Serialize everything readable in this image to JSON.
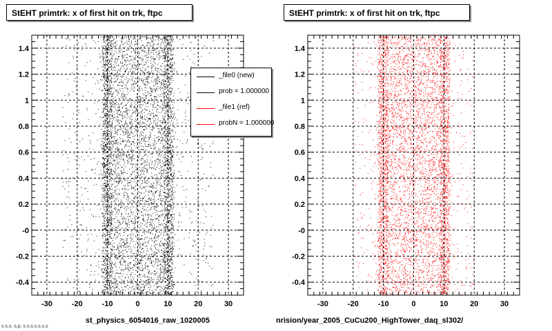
{
  "panels": [
    {
      "title": "StEHT primtrk: x of first hit on trk, ftpc",
      "footer": "st_physics_6054016_raw_1020005",
      "color": "#000000"
    },
    {
      "title": "StEHT primtrk: x of first hit on trk, ftpc",
      "footer": "nrision/year_2005_CuCu200_HighTower_daq_sl302/",
      "color": "#ff0000"
    }
  ],
  "footer_stamp": "s.s.s. s.p. s.s.s.s.s.s.s",
  "legend": {
    "entries": [
      {
        "label": "_file0 (new)",
        "color": "#000000"
      },
      {
        "label": "prob = 1.000000",
        "color": "#000000"
      },
      {
        "label": "_file1 (ref)",
        "color": "#ff0000"
      },
      {
        "label": "probN = 1.000000",
        "color": "#ff0000"
      }
    ]
  },
  "chart_data": [
    {
      "type": "scatter",
      "title": "StEHT primtrk: x of first hit on trk, ftpc",
      "xlabel": "",
      "ylabel": "",
      "xlim": [
        -35,
        35
      ],
      "ylim": [
        -0.5,
        1.5
      ],
      "x_ticks": [
        -30,
        -20,
        -10,
        0,
        10,
        20,
        30
      ],
      "x_tick_labels": [
        "-30",
        "-20",
        "-10",
        "0",
        "10",
        "20",
        "30"
      ],
      "y_ticks": [
        -0.4,
        -0.2,
        0.0,
        0.2,
        0.4,
        0.6,
        0.8,
        1.0,
        1.2,
        1.4
      ],
      "y_tick_labels": [
        "-0.4",
        "-0.2",
        "-0",
        "0.2",
        "0.4",
        "0.6",
        "0.8",
        "1",
        "1.2",
        "1.4"
      ],
      "grid": true,
      "series": [
        {
          "name": "_file0 (new)",
          "color": "#000000",
          "n_points": 6500,
          "x_range": [
            -25,
            25
          ],
          "x_dense_bands": [
            -10,
            10
          ],
          "y_range": [
            -0.5,
            1.5
          ]
        }
      ]
    },
    {
      "type": "scatter",
      "title": "StEHT primtrk: x of first hit on trk, ftpc",
      "xlabel": "",
      "ylabel": "",
      "xlim": [
        -35,
        35
      ],
      "ylim": [
        -0.5,
        1.5
      ],
      "x_ticks": [
        -30,
        -20,
        -10,
        0,
        10,
        20,
        30
      ],
      "x_tick_labels": [
        "-30",
        "-20",
        "-10",
        "0",
        "10",
        "20",
        "30"
      ],
      "y_ticks": [
        -0.4,
        -0.2,
        0.0,
        0.2,
        0.4,
        0.6,
        0.8,
        1.0,
        1.2,
        1.4
      ],
      "y_tick_labels": [
        "-0.4",
        "-0.2",
        "-0",
        "0.2",
        "0.4",
        "0.6",
        "0.8",
        "1",
        "1.2",
        "1.4"
      ],
      "grid": true,
      "series": [
        {
          "name": "_file1 (ref)",
          "color": "#ff0000",
          "n_points": 6000,
          "x_range": [
            -20,
            20
          ],
          "x_dense_bands": [
            -10,
            10
          ],
          "y_range": [
            -0.5,
            1.5
          ]
        }
      ]
    }
  ]
}
